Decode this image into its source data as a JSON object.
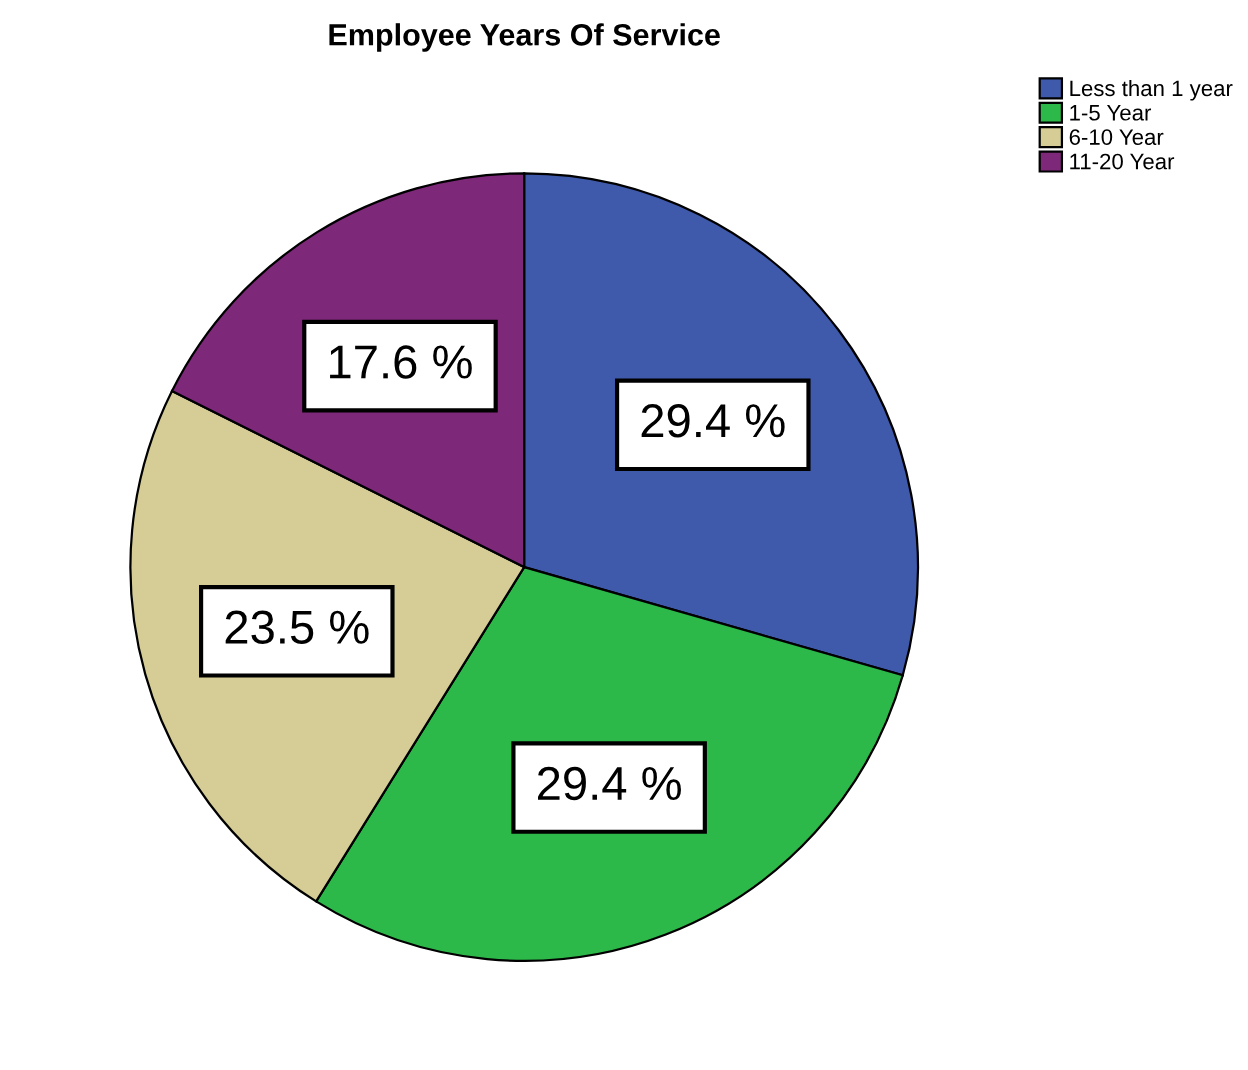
{
  "chart_data": {
    "type": "pie",
    "title": "Employee Years Of Service",
    "categories": [
      "Less than 1 year",
      "1-5 Year",
      "6-10 Year",
      "11-20 Year"
    ],
    "values": [
      29.4,
      29.4,
      23.5,
      17.6
    ],
    "colors": [
      "#3f59ab",
      "#2db84a",
      "#d5cd95",
      "#7d2879"
    ],
    "value_labels": [
      "29.4 %",
      "29.4 %",
      "23.5 %",
      "17.6 %"
    ],
    "legend": "top right"
  }
}
